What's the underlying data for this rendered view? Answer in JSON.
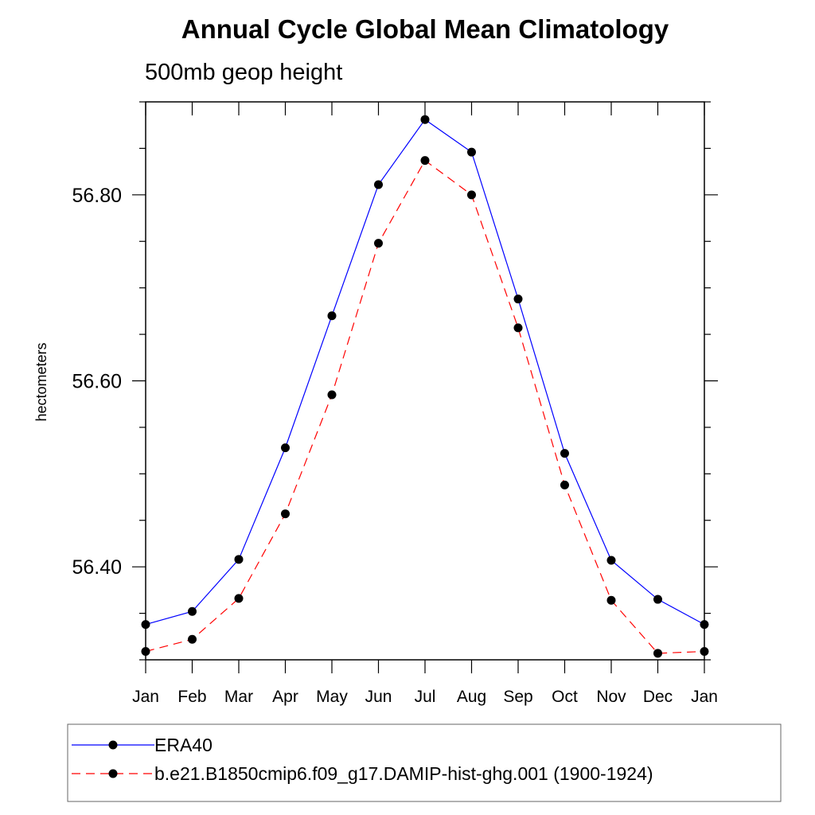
{
  "chart_data": {
    "type": "line",
    "title": "Annual Cycle Global Mean Climatology",
    "subtitle": "500mb geop height",
    "xlabel": "",
    "ylabel": "hectometers",
    "categories": [
      "Jan",
      "Feb",
      "Mar",
      "Apr",
      "May",
      "Jun",
      "Jul",
      "Aug",
      "Sep",
      "Oct",
      "Nov",
      "Dec",
      "Jan"
    ],
    "ylim": [
      56.3,
      56.9
    ],
    "yticks": [
      56.4,
      56.6,
      56.8
    ],
    "ytick_labels": [
      "56.40",
      "56.60",
      "56.80"
    ],
    "grid": false,
    "legend_position": "bottom",
    "series": [
      {
        "name": "ERA40",
        "color": "#0000ff",
        "dash": "solid",
        "marker": "filled-circle",
        "values": [
          56.338,
          56.352,
          56.408,
          56.528,
          56.67,
          56.811,
          56.881,
          56.846,
          56.688,
          56.522,
          56.407,
          56.365,
          56.338
        ]
      },
      {
        "name": "b.e21.B1850cmip6.f09_g17.DAMIP-hist-ghg.001 (1900-1924)",
        "color": "#ff0000",
        "dash": "dashed",
        "marker": "filled-circle",
        "values": [
          56.309,
          56.322,
          56.366,
          56.457,
          56.585,
          56.748,
          56.837,
          56.8,
          56.657,
          56.488,
          56.364,
          56.307,
          56.309
        ]
      }
    ]
  }
}
